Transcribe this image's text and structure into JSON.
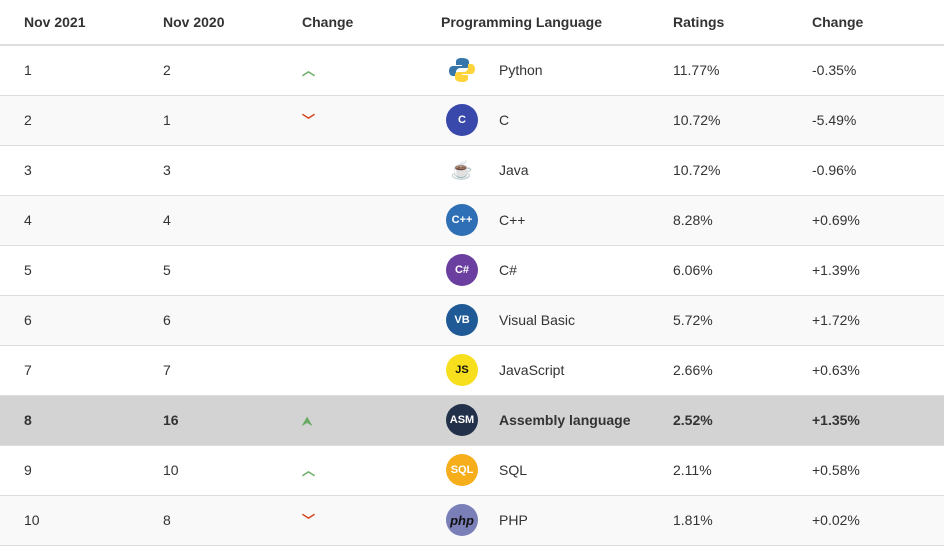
{
  "headers": [
    "Nov 2021",
    "Nov 2020",
    "Change",
    "Programming Language",
    "Ratings",
    "Change"
  ],
  "rows": [
    {
      "now": "1",
      "prev": "2",
      "trend": "up",
      "icon": "python-logo",
      "logo_text": "",
      "logo_bg": "#3776ab",
      "language": "Python",
      "rating": "11.77%",
      "change": "-0.35%"
    },
    {
      "now": "2",
      "prev": "1",
      "trend": "down",
      "icon": "c-logo",
      "logo_text": "C",
      "logo_bg": "#3949ab",
      "language": "C",
      "rating": "10.72%",
      "change": "-5.49%"
    },
    {
      "now": "3",
      "prev": "3",
      "trend": "",
      "icon": "java-logo",
      "logo_text": "☕",
      "logo_bg": "#ffffff",
      "language": "Java",
      "rating": "10.72%",
      "change": "-0.96%"
    },
    {
      "now": "4",
      "prev": "4",
      "trend": "",
      "icon": "cpp-logo",
      "logo_text": "C++",
      "logo_bg": "#2f6fb5",
      "language": "C++",
      "rating": "8.28%",
      "change": "+0.69%"
    },
    {
      "now": "5",
      "prev": "5",
      "trend": "",
      "icon": "csharp-logo",
      "logo_text": "C#",
      "logo_bg": "#6a3fa0",
      "language": "C#",
      "rating": "6.06%",
      "change": "+1.39%"
    },
    {
      "now": "6",
      "prev": "6",
      "trend": "",
      "icon": "visual-basic-logo",
      "logo_text": "VB",
      "logo_bg": "#1f5a96",
      "language": "Visual Basic",
      "rating": "5.72%",
      "change": "+1.72%"
    },
    {
      "now": "7",
      "prev": "7",
      "trend": "",
      "icon": "javascript-logo",
      "logo_text": "JS",
      "logo_bg": "#f7df1e",
      "language": "JavaScript",
      "rating": "2.66%",
      "change": "+0.63%"
    },
    {
      "now": "8",
      "prev": "16",
      "trend": "double-up",
      "icon": "assembly-logo",
      "logo_text": "ASM",
      "logo_bg": "#23304a",
      "language": "Assembly language",
      "rating": "2.52%",
      "change": "+1.35%",
      "highlight": true
    },
    {
      "now": "9",
      "prev": "10",
      "trend": "up",
      "icon": "sql-logo",
      "logo_text": "SQL",
      "logo_bg": "#f6ae1a",
      "language": "SQL",
      "rating": "2.11%",
      "change": "+0.58%"
    },
    {
      "now": "10",
      "prev": "8",
      "trend": "down",
      "icon": "php-logo",
      "logo_text": "php",
      "logo_bg": "#7a7fb8",
      "language": "PHP",
      "rating": "1.81%",
      "change": "+0.02%"
    }
  ],
  "colors": {
    "up": "#6aaa64",
    "down": "#d84315",
    "highlight": "#d3d3d3"
  }
}
